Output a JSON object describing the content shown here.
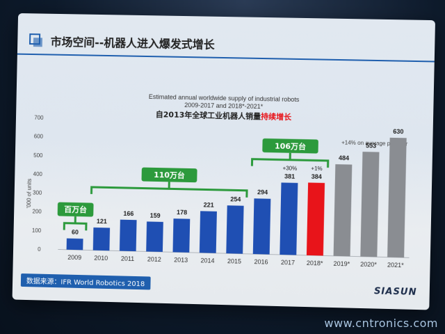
{
  "slide": {
    "heading": "市场空间--机器人进入爆发式增长",
    "source_label": "数据来源：IFR World Robotics 2018",
    "brand": "SIASUN"
  },
  "watermark": "www.cntronics.com",
  "chart_data": {
    "type": "bar",
    "title": "Estimated annual worldwide supply of industrial robots",
    "subtitle": "2009-2017 and 2018*-2021*",
    "title_cn_prefix": "自2013年全球工业机器人销量",
    "title_cn_highlight": "持续增长",
    "ylabel": "'000 of units",
    "ylim": [
      0,
      700
    ],
    "yticks": [
      0,
      100,
      200,
      300,
      400,
      500,
      600,
      700
    ],
    "categories": [
      "2009",
      "2010",
      "2011",
      "2012",
      "2013",
      "2014",
      "2015",
      "2016",
      "2017",
      "2018*",
      "2019*",
      "2020*",
      "2021*"
    ],
    "values": [
      60,
      121,
      166,
      159,
      178,
      221,
      254,
      294,
      381,
      384,
      484,
      553,
      630
    ],
    "bar_colors": [
      "#1f4fb3",
      "#1f4fb3",
      "#1f4fb3",
      "#1f4fb3",
      "#1f4fb3",
      "#1f4fb3",
      "#1f4fb3",
      "#1f4fb3",
      "#1f4fb3",
      "#e8141a",
      "#8a8d92",
      "#8a8d92",
      "#8a8d92"
    ],
    "annotations": {
      "growth_note": "+14% on average per year",
      "pct_2017": "+30%",
      "pct_2018": "+1%",
      "badges": [
        {
          "label": "百万台",
          "from": "2009",
          "to": "2009"
        },
        {
          "label": "110万台",
          "from": "2010",
          "to": "2015"
        },
        {
          "label": "106万台",
          "from": "2016",
          "to": "2018*"
        }
      ]
    }
  }
}
